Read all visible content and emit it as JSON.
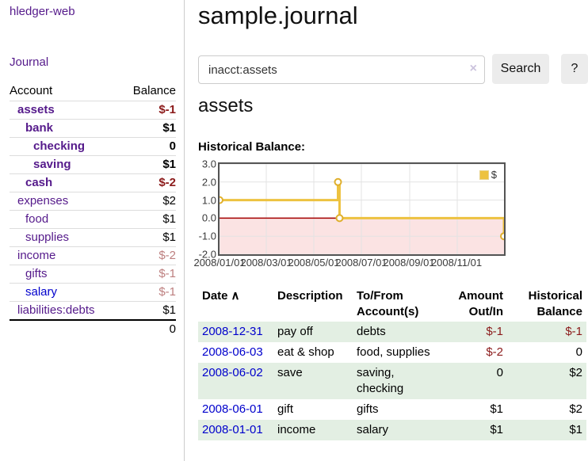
{
  "app": {
    "brand": "hledger-web"
  },
  "sidebar": {
    "journal_link": "Journal",
    "accounts_header": {
      "account": "Account",
      "balance": "Balance"
    },
    "accounts": [
      {
        "name": "assets",
        "balance": "$-1"
      },
      {
        "name": "bank",
        "balance": "$1"
      },
      {
        "name": "checking",
        "balance": "0"
      },
      {
        "name": "saving",
        "balance": "$1"
      },
      {
        "name": "cash",
        "balance": "$-2"
      },
      {
        "name": "expenses",
        "balance": "$2"
      },
      {
        "name": "food",
        "balance": "$1"
      },
      {
        "name": "supplies",
        "balance": "$1"
      },
      {
        "name": "income",
        "balance": "$-2"
      },
      {
        "name": "gifts",
        "balance": "$-1"
      },
      {
        "name": "salary",
        "balance": "$-1"
      },
      {
        "name": "liabilities:debts",
        "balance": "$1"
      }
    ],
    "total": "0"
  },
  "main": {
    "title": "sample.journal",
    "search": {
      "value": "inacct:assets",
      "clear_icon": "×",
      "search_button": "Search",
      "help_button": "?"
    },
    "account_heading": "assets",
    "register_table": {
      "headers": {
        "date": "Date",
        "sort_icon": "∧",
        "description": "Description",
        "accounts": "To/From\nAccount(s)",
        "amount": "Amount\nOut/In",
        "balance": "Historical\nBalance"
      },
      "rows": [
        {
          "date": "2008-12-31",
          "description": "pay off",
          "accounts": "debts",
          "amount": "$-1",
          "balance": "$-1"
        },
        {
          "date": "2008-06-03",
          "description": "eat & shop",
          "accounts": "food, supplies",
          "amount": "$-2",
          "balance": "0"
        },
        {
          "date": "2008-06-02",
          "description": "save",
          "accounts": "saving,\nchecking",
          "amount": "0",
          "balance": "$2"
        },
        {
          "date": "2008-06-01",
          "description": "gift",
          "accounts": "gifts",
          "amount": "$1",
          "balance": "$2"
        },
        {
          "date": "2008-01-01",
          "description": "income",
          "accounts": "salary",
          "amount": "$1",
          "balance": "$1"
        }
      ]
    }
  },
  "chart_data": {
    "type": "line",
    "style": "steps",
    "title": "Historical Balance:",
    "series": [
      {
        "name": "$",
        "points": [
          [
            "2008-01-01",
            1.0
          ],
          [
            "2008-06-01",
            2.0
          ],
          [
            "2008-06-03",
            0.0
          ],
          [
            "2008-12-31",
            -1.0
          ]
        ]
      }
    ],
    "x_range": [
      "2008-01-01",
      "2008-12-31"
    ],
    "ylim": [
      -2.0,
      3.0
    ],
    "y_ticks": [
      3.0,
      2.0,
      1.0,
      0.0,
      -1.0,
      -2.0
    ],
    "y_tick_labels": [
      "3.0",
      "2.0",
      "1.0",
      "0.0",
      "-1.0",
      "-2.0"
    ],
    "x_ticks": [
      "2008/01/01",
      "2008/03/01",
      "2008/05/01",
      "2008/07/01",
      "2008/09/01",
      "2008/11/01"
    ],
    "legend": {
      "position": "top-right",
      "entries": [
        "$"
      ]
    },
    "grid": true,
    "negative_region_shaded": true
  },
  "colors": {
    "link_purple": "#551a8b",
    "link_blue": "#0000cc",
    "negative_strong": "#8b1a1a",
    "negative_dim": "#bd7f7f",
    "row_stripe_green": "#e3efe3",
    "series": "#edc240",
    "series_marker": "#dfaf2c",
    "zero_line": "#a40000",
    "negative_region": "#fbe3e3",
    "gridline": "#e3e3e3",
    "chart_border": "#545454",
    "button_bg": "#ececec"
  }
}
